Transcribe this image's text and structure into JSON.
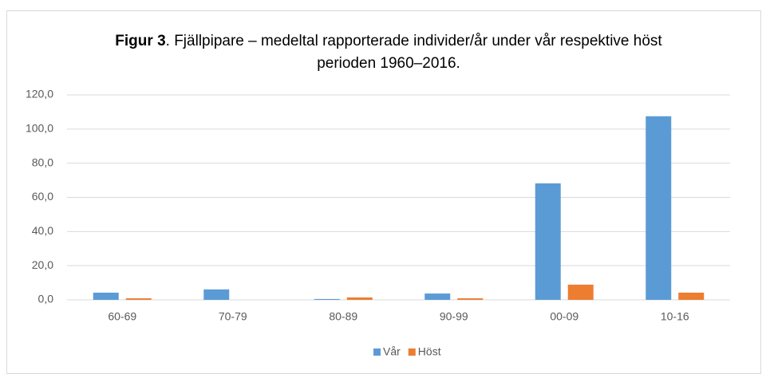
{
  "chart_data": {
    "type": "bar",
    "title": [
      "Figur 3",
      ". Fjällpipare – medeltal rapporterade individer/år under vår respektive höst",
      "perioden 1960–2016."
    ],
    "categories": [
      "60-69",
      "70-79",
      "80-89",
      "90-99",
      "00-09",
      "10-16"
    ],
    "series": [
      {
        "name": "Vår",
        "color": "#5b9bd5",
        "values": [
          4.2,
          6.1,
          0.5,
          3.7,
          68.2,
          107.5
        ]
      },
      {
        "name": "Höst",
        "color": "#ed7d31",
        "values": [
          0.9,
          0,
          1.4,
          0.9,
          8.9,
          4.2
        ]
      }
    ],
    "ylim": [
      0,
      120
    ],
    "yticks": [
      {
        "value": 0,
        "label": "0,0"
      },
      {
        "value": 20,
        "label": "20,0"
      },
      {
        "value": 40,
        "label": "40,0"
      },
      {
        "value": 60,
        "label": "60,0"
      },
      {
        "value": 80,
        "label": "80,0"
      },
      {
        "value": 100,
        "label": "100,0"
      },
      {
        "value": 120,
        "label": "120,0"
      }
    ],
    "grid": true,
    "legend": "bottom"
  }
}
